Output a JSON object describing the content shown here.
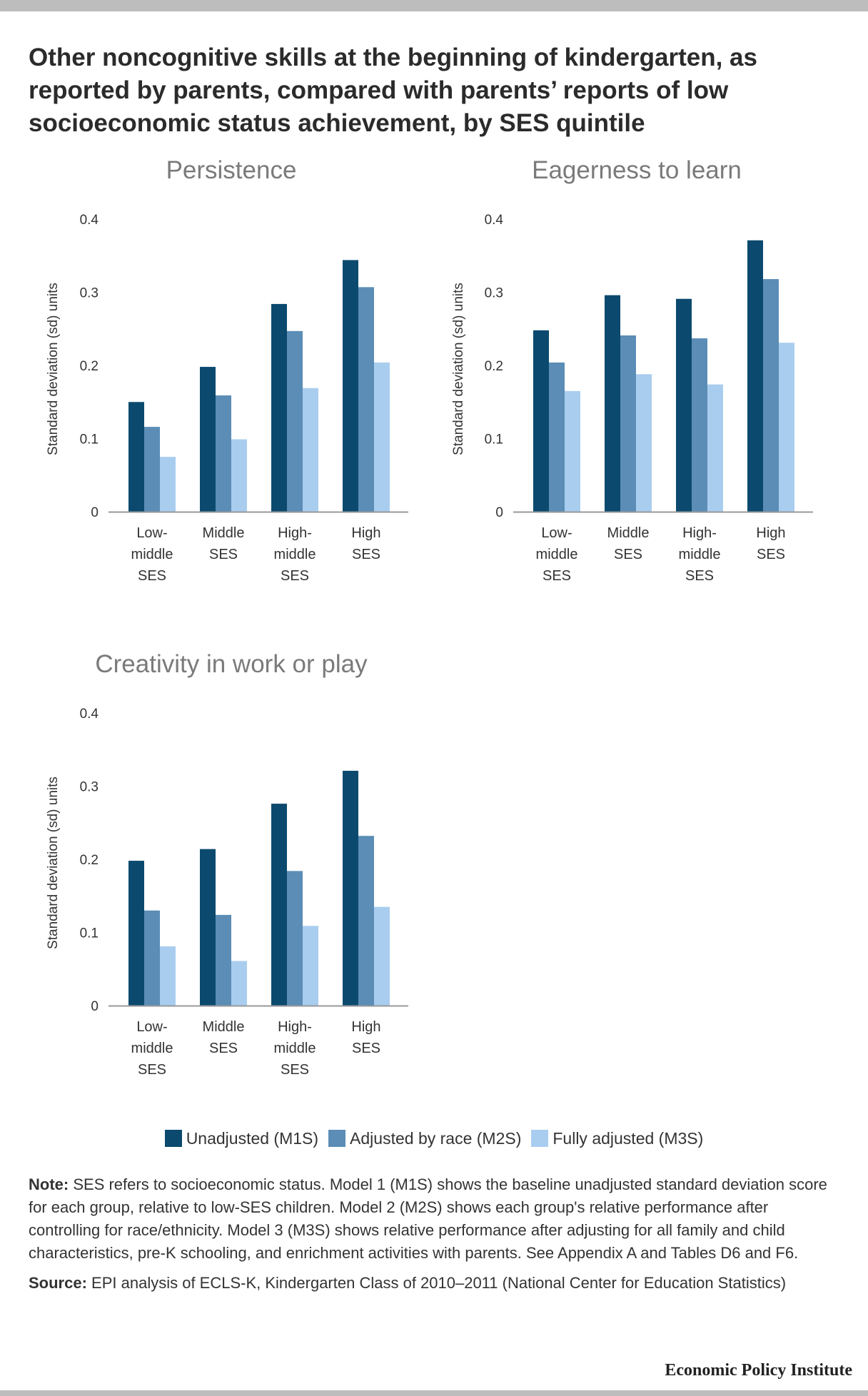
{
  "title": "Other noncognitive skills at the beginning of kindergarten, as reported by parents, compared with parents’ reports of low socioeconomic status achievement, by SES quintile",
  "colors": {
    "M1S": "#0b4a6e",
    "M2S": "#5b8db6",
    "M3S": "#a9cdef",
    "axis": "#999999",
    "text": "#333333",
    "subtitle": "#7a7a7a"
  },
  "chart_data": [
    {
      "type": "bar",
      "title": "Persistence",
      "ylabel": "Standard deviation (sd) units",
      "ylim": [
        0,
        0.4
      ],
      "yticks": [
        "0",
        "0.1",
        "0.2",
        "0.3",
        "0.4"
      ],
      "categories": [
        [
          "Low-",
          "middle",
          "SES"
        ],
        [
          "Middle",
          "SES"
        ],
        [
          "High-",
          "middle",
          "SES"
        ],
        [
          "High",
          "SES"
        ]
      ],
      "series": [
        {
          "name": "Unadjusted (M1S)",
          "values": [
            0.15,
            0.198,
            0.284,
            0.344
          ]
        },
        {
          "name": "Adjusted by race (M2S)",
          "values": [
            0.116,
            0.159,
            0.247,
            0.307
          ]
        },
        {
          "name": "Fully adjusted (M3S)",
          "values": [
            0.075,
            0.099,
            0.169,
            0.204
          ]
        }
      ]
    },
    {
      "type": "bar",
      "title": "Eagerness to learn",
      "ylabel": "Standard deviation (sd) units",
      "ylim": [
        0,
        0.4
      ],
      "yticks": [
        "0",
        "0.1",
        "0.2",
        "0.3",
        "0.4"
      ],
      "categories": [
        [
          "Low-",
          "middle",
          "SES"
        ],
        [
          "Middle",
          "SES"
        ],
        [
          "High-",
          "middle",
          "SES"
        ],
        [
          "High",
          "SES"
        ]
      ],
      "series": [
        {
          "name": "Unadjusted (M1S)",
          "values": [
            0.248,
            0.296,
            0.291,
            0.371
          ]
        },
        {
          "name": "Adjusted by race (M2S)",
          "values": [
            0.204,
            0.241,
            0.237,
            0.318
          ]
        },
        {
          "name": "Fully adjusted (M3S)",
          "values": [
            0.165,
            0.188,
            0.174,
            0.231
          ]
        }
      ]
    },
    {
      "type": "bar",
      "title": "Creativity in work or play",
      "ylabel": "Standard deviation (sd) units",
      "ylim": [
        0,
        0.4
      ],
      "yticks": [
        "0",
        "0.1",
        "0.2",
        "0.3",
        "0.4"
      ],
      "categories": [
        [
          "Low-",
          "middle",
          "SES"
        ],
        [
          "Middle",
          "SES"
        ],
        [
          "High-",
          "middle",
          "SES"
        ],
        [
          "High",
          "SES"
        ]
      ],
      "series": [
        {
          "name": "Unadjusted (M1S)",
          "values": [
            0.198,
            0.214,
            0.276,
            0.321
          ]
        },
        {
          "name": "Adjusted by race (M2S)",
          "values": [
            0.13,
            0.124,
            0.184,
            0.232
          ]
        },
        {
          "name": "Fully adjusted (M3S)",
          "values": [
            0.081,
            0.061,
            0.109,
            0.135
          ]
        }
      ]
    }
  ],
  "legend": [
    {
      "label": "Unadjusted (M1S)",
      "color": "#0b4a6e"
    },
    {
      "label": "Adjusted by race (M2S)",
      "color": "#5b8db6"
    },
    {
      "label": "Fully adjusted (M3S)",
      "color": "#a9cdef"
    }
  ],
  "note": {
    "label": "Note:",
    "text": "SES refers to socioeconomic status. Model 1 (M1S) shows the baseline unadjusted standard deviation score for each group, relative to low-SES children. Model 2 (M2S) shows each group's relative performance after controlling for race/ethnicity. Model 3 (M3S) shows relative performance after adjusting for all family and child characteristics, pre-K schooling, and enrichment activities with parents. See Appendix A and Tables D6 and F6."
  },
  "source": {
    "label": "Source:",
    "text": "EPI analysis of ECLS-K, Kindergarten Class of 2010–2011 (National Center for Education Statistics)"
  },
  "brand": "Economic Policy Institute"
}
